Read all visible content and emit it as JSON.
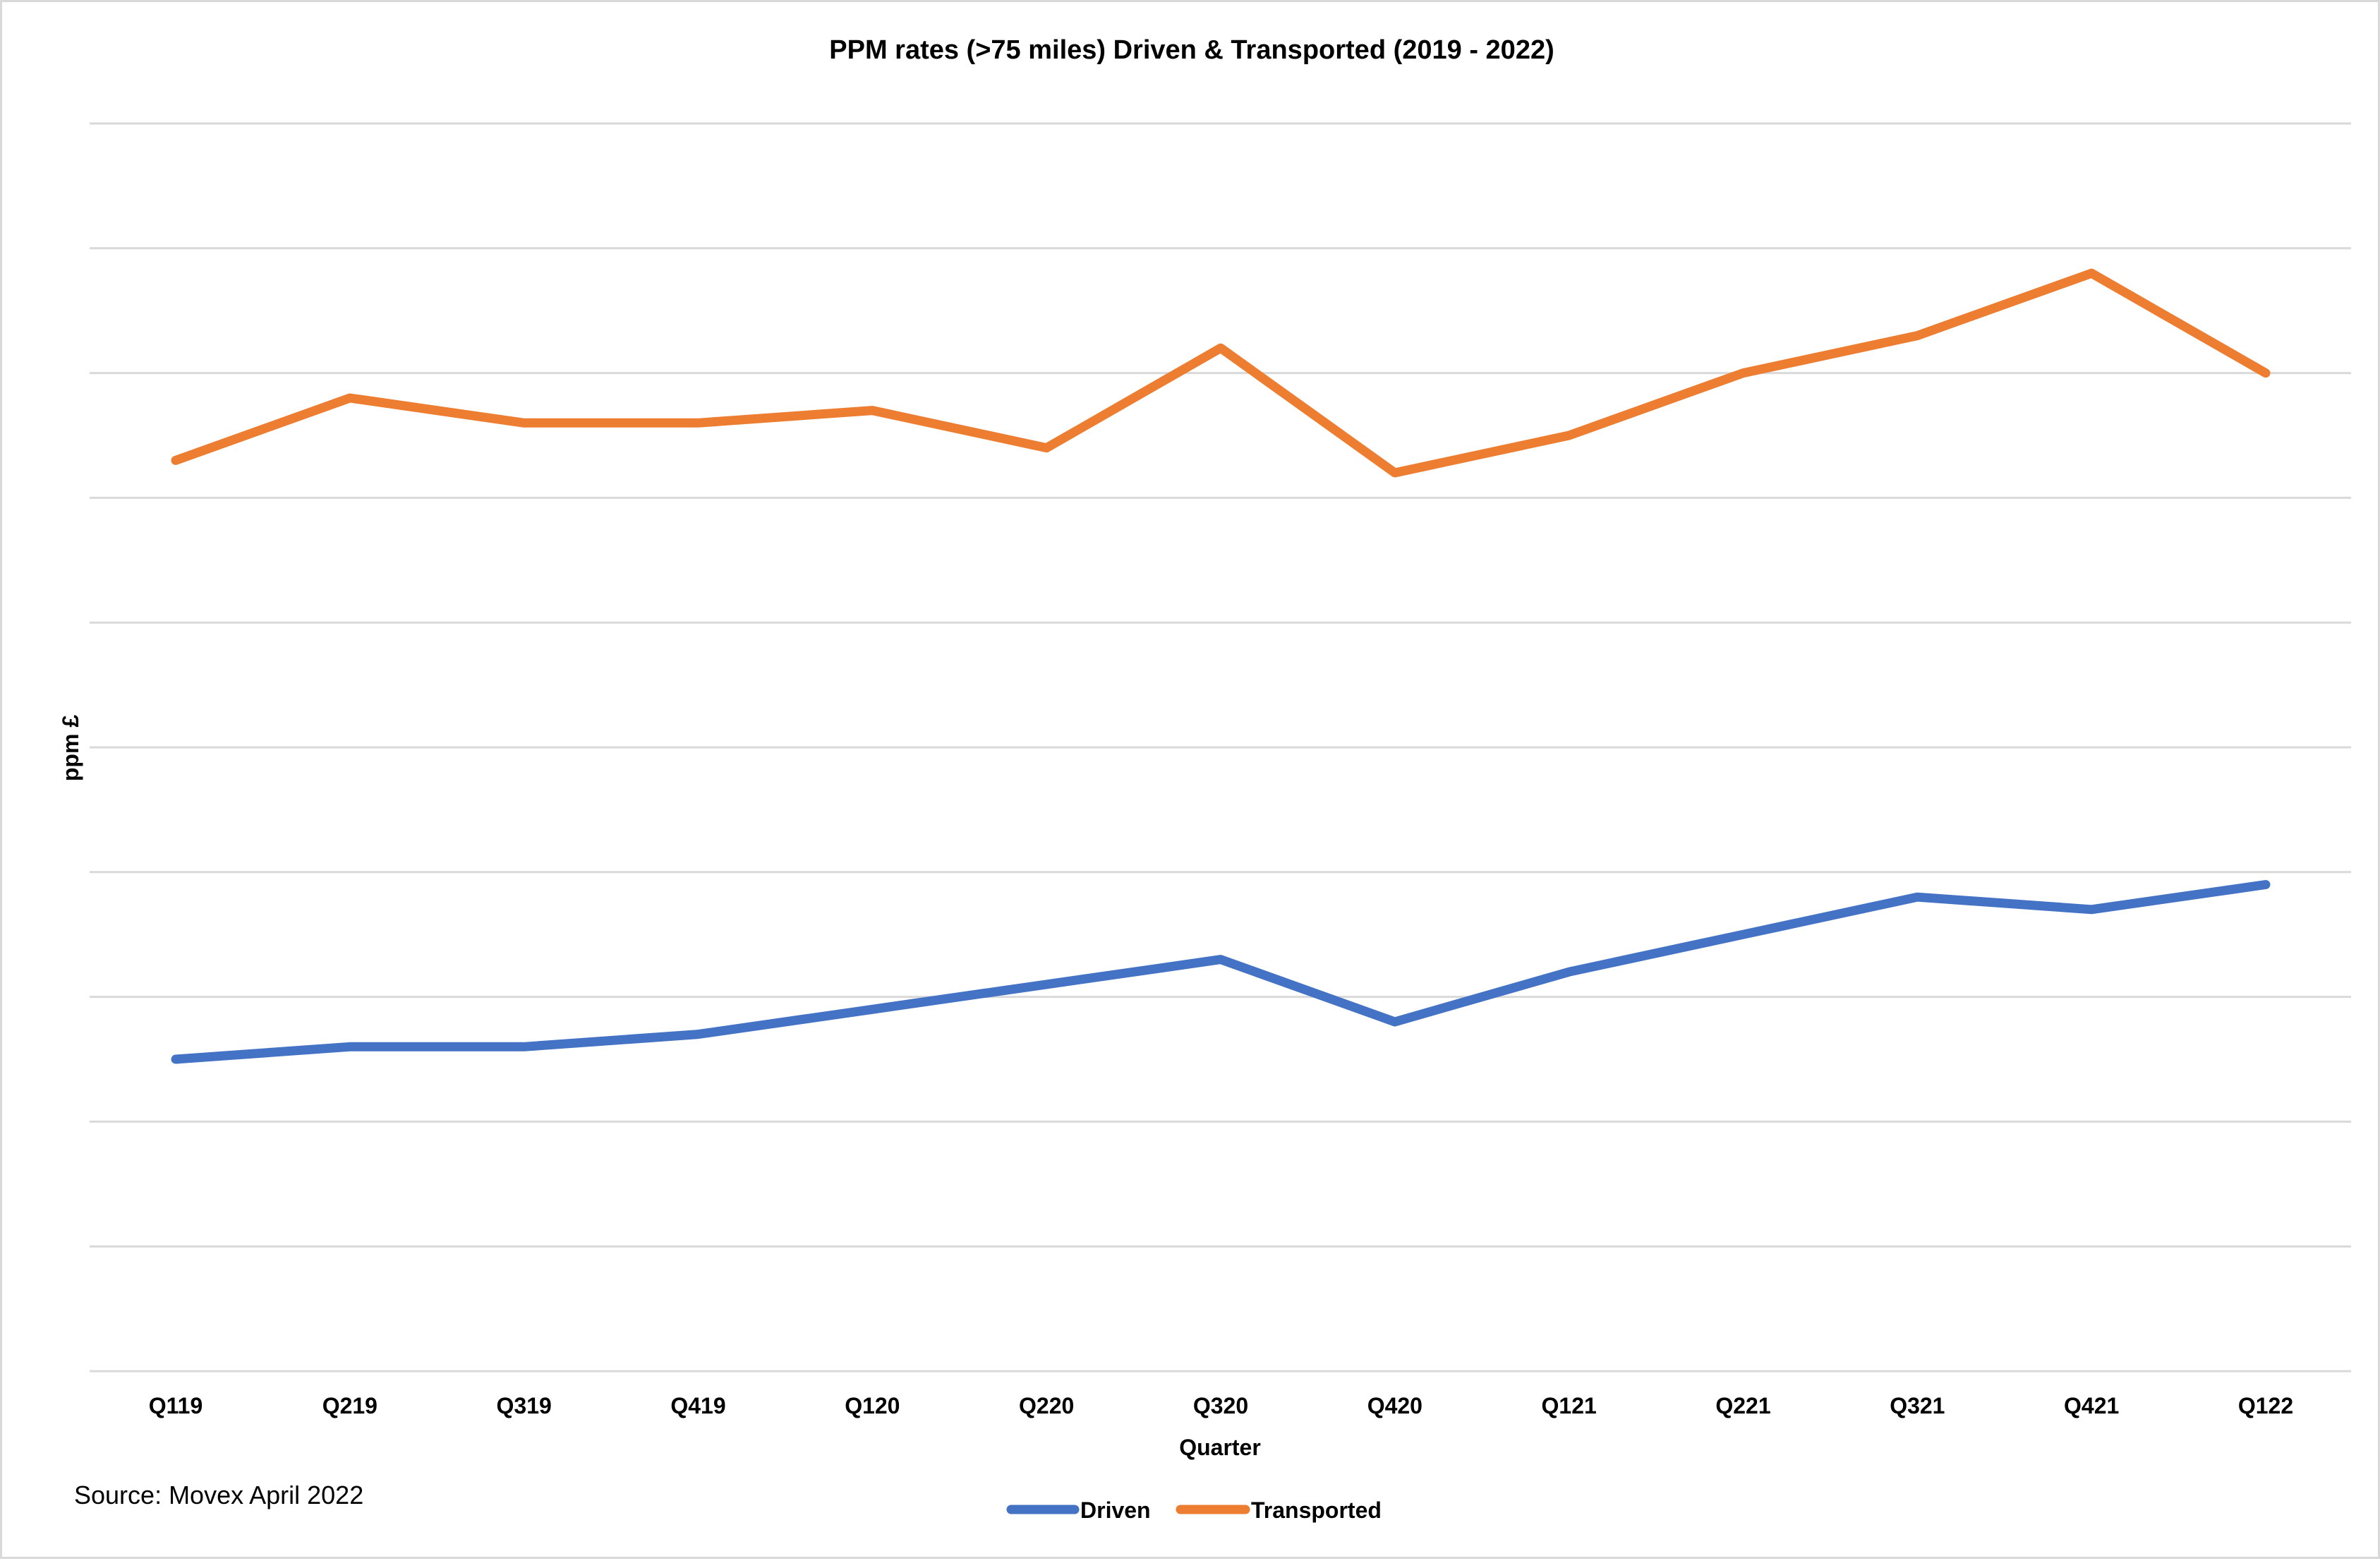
{
  "chart_data": {
    "type": "line",
    "title": "PPM rates (>75 miles) Driven & Transported (2019 - 2022)",
    "xlabel": "Quarter",
    "ylabel": "ppm £",
    "categories": [
      "Q119",
      "Q219",
      "Q319",
      "Q419",
      "Q120",
      "Q220",
      "Q320",
      "Q420",
      "Q121",
      "Q221",
      "Q321",
      "Q421",
      "Q122"
    ],
    "ylim": [
      0,
      10
    ],
    "gridlines": 10,
    "grid": true,
    "y_tick_labels_shown": false,
    "legend_position": "bottom-center",
    "series": [
      {
        "name": "Driven",
        "color": "#4472C4",
        "values": [
          2.5,
          2.6,
          2.6,
          2.7,
          2.9,
          3.1,
          3.3,
          2.8,
          3.2,
          3.5,
          3.8,
          3.7,
          3.9
        ]
      },
      {
        "name": "Transported",
        "color": "#ED7D31",
        "values": [
          7.3,
          7.8,
          7.6,
          7.6,
          7.7,
          7.4,
          8.2,
          7.2,
          7.5,
          8.0,
          8.3,
          8.8,
          8.0
        ]
      }
    ],
    "source_note": "Source: Movex April 2022"
  }
}
